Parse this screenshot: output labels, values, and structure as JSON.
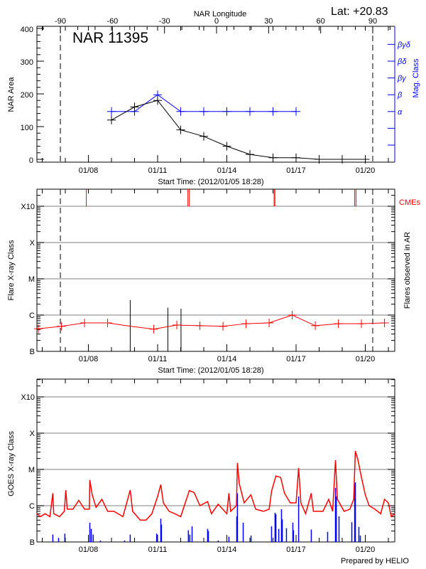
{
  "lat_label": "Lat: +20.83",
  "footer": "Prepared by HELIO",
  "colors": {
    "area": "#000000",
    "mag": "#0000ff",
    "flare_avg": "#ff0000",
    "cme": "#ff0000",
    "goes_long": "#ff0000",
    "goes_short": "#0000ff",
    "grid": "#999999"
  },
  "chart_data": [
    {
      "type": "line",
      "title": "NAR 11395",
      "top_axis_label": "NAR Longitude",
      "top_axis_ticks": [
        -90,
        -60,
        -30,
        0,
        30,
        60,
        90
      ],
      "limb_longitudes": [
        -90,
        90
      ],
      "xlabel": "Start Time: (2012/01/05 18:28)",
      "x_range": [
        "2012-01-05 18:28",
        "2012-01-21 06:28"
      ],
      "x_tick_labels": [
        "01/08",
        "01/11",
        "01/14",
        "01/17",
        "01/20"
      ],
      "x_tick_dates": [
        "2012-01-08 00:00",
        "2012-01-11 00:00",
        "2012-01-14 00:00",
        "2012-01-17 00:00",
        "2012-01-20 00:00"
      ],
      "ylabel": "NAR Area",
      "ylim": [
        0,
        400
      ],
      "y_ticks": [
        0,
        100,
        200,
        300,
        400
      ],
      "y2label": "Mag. Class",
      "y2_levels": [
        "",
        "",
        "α",
        "β",
        "βγ",
        "βδ",
        "βγδ"
      ],
      "area_series": {
        "x": [
          "2012-01-09 00:00",
          "2012-01-10 00:00",
          "2012-01-11 00:00",
          "2012-01-12 00:00",
          "2012-01-13 00:00",
          "2012-01-14 00:00",
          "2012-01-15 00:00",
          "2012-01-16 00:00",
          "2012-01-17 00:00",
          "2012-01-18 00:00",
          "2012-01-19 00:00",
          "2012-01-20 00:00"
        ],
        "values": [
          120,
          160,
          180,
          90,
          70,
          40,
          15,
          5,
          5,
          0,
          0,
          0
        ]
      },
      "mag_series": {
        "x": [
          "2012-01-09 00:00",
          "2012-01-10 00:00",
          "2012-01-11 00:00",
          "2012-01-12 00:00",
          "2012-01-13 00:00",
          "2012-01-14 00:00",
          "2012-01-15 00:00",
          "2012-01-16 00:00",
          "2012-01-17 00:00"
        ],
        "values": [
          "α",
          "α",
          "β",
          "α",
          "α",
          "α",
          "α",
          "α",
          "α"
        ]
      }
    },
    {
      "type": "line",
      "xlabel": "Start Time: (2012/01/05 18:28)",
      "x_tick_labels": [
        "01/08",
        "01/11",
        "01/14",
        "01/17",
        "01/20"
      ],
      "ylabel": "Flare X-ray Class",
      "y2label": "Flares observed in AR",
      "y_scale": "log",
      "y_tick_labels": [
        "B",
        "C",
        "M",
        "X",
        "X10"
      ],
      "grid": true,
      "cme_label": "CMEs",
      "cme_times": [
        "2012-01-07 21:50",
        "2012-01-12 07:30",
        "2012-01-12 09:00",
        "2012-01-16 01:10",
        "2012-01-16 02:00",
        "2012-01-19 13:00",
        "2012-01-19 14:20"
      ],
      "flares": [
        {
          "time": "2012-01-09 19:30",
          "class": "C2.6"
        },
        {
          "time": "2012-01-11 10:40",
          "class": "C1.6"
        },
        {
          "time": "2012-01-12 00:20",
          "class": "C1.5"
        }
      ],
      "background_series": {
        "x": [
          "2012-01-05 20:00",
          "2012-01-06 20:00",
          "2012-01-07 20:00",
          "2012-01-08 20:00",
          "2012-01-09 20:00",
          "2012-01-10 20:00",
          "2012-01-11 20:00",
          "2012-01-12 20:00",
          "2012-01-13 20:00",
          "2012-01-14 20:00",
          "2012-01-15 20:00",
          "2012-01-16 20:00",
          "2012-01-17 20:00",
          "2012-01-18 20:00",
          "2012-01-19 20:00",
          "2012-01-20 20:00"
        ],
        "values": [
          "B4.2",
          "B4.9",
          "B6.1",
          "B6.1",
          "B4.9",
          "B4.1",
          "B5.3",
          "B5.1",
          "B4.9",
          "B5.8",
          "B6.1",
          "C1.0",
          "B5.1",
          "B5.8",
          "B5.8",
          "B6.1"
        ],
        "markers": [
          true,
          true,
          true,
          true,
          false,
          true,
          true,
          true,
          true,
          true,
          true,
          true,
          true,
          true,
          true,
          true
        ]
      }
    },
    {
      "type": "line",
      "x_tick_labels": [
        "01/08",
        "01/11",
        "01/14",
        "01/17",
        "01/20"
      ],
      "ylabel": "GOES X-ray Class",
      "y_scale": "log",
      "y_tick_labels": [
        "B",
        "C",
        "M",
        "X",
        "X10"
      ],
      "grid": true,
      "long_channel": [
        [
          "2012-01-05 18:28",
          6e-07
        ],
        [
          "2012-01-05 22:00",
          5e-07
        ],
        [
          "2012-01-06 03:00",
          6e-07
        ],
        [
          "2012-01-06 08:00",
          5e-07
        ],
        [
          "2012-01-06 11:00",
          2.2e-06
        ],
        [
          "2012-01-06 12:00",
          6e-07
        ],
        [
          "2012-01-06 18:00",
          5e-07
        ],
        [
          "2012-01-06 23:00",
          7e-07
        ],
        [
          "2012-01-07 00:30",
          2.7e-06
        ],
        [
          "2012-01-07 02:00",
          8e-07
        ],
        [
          "2012-01-07 08:00",
          8e-07
        ],
        [
          "2012-01-07 14:00",
          1.4e-06
        ],
        [
          "2012-01-07 20:00",
          8e-07
        ],
        [
          "2012-01-08 01:00",
          8e-07
        ],
        [
          "2012-01-08 01:30",
          5.1e-06
        ],
        [
          "2012-01-08 04:00",
          2e-06
        ],
        [
          "2012-01-08 08:00",
          9e-07
        ],
        [
          "2012-01-08 14:00",
          1.5e-06
        ],
        [
          "2012-01-08 20:00",
          7e-07
        ],
        [
          "2012-01-09 02:30",
          7e-07
        ],
        [
          "2012-01-09 12:00",
          5e-07
        ],
        [
          "2012-01-09 19:30",
          2.7e-06
        ],
        [
          "2012-01-09 22:00",
          7e-07
        ],
        [
          "2012-01-10 06:00",
          4e-07
        ],
        [
          "2012-01-10 12:00",
          4e-07
        ],
        [
          "2012-01-10 18:00",
          6e-07
        ],
        [
          "2012-01-11 00:00",
          1.8e-06
        ],
        [
          "2012-01-11 03:20",
          3.8e-06
        ],
        [
          "2012-01-11 06:00",
          1.2e-06
        ],
        [
          "2012-01-11 12:00",
          7e-07
        ],
        [
          "2012-01-11 18:00",
          6e-07
        ],
        [
          "2012-01-12 00:00",
          5e-07
        ],
        [
          "2012-01-12 06:00",
          1.5e-06
        ],
        [
          "2012-01-12 09:00",
          2.6e-06
        ],
        [
          "2012-01-12 14:00",
          2.3e-06
        ],
        [
          "2012-01-12 20:00",
          1e-06
        ],
        [
          "2012-01-13 04:00",
          1.3e-06
        ],
        [
          "2012-01-13 08:00",
          6e-07
        ],
        [
          "2012-01-13 15:00",
          1.1e-06
        ],
        [
          "2012-01-14 00:00",
          6e-07
        ],
        [
          "2012-01-14 02:10",
          2.2e-06
        ],
        [
          "2012-01-14 04:00",
          7e-07
        ],
        [
          "2012-01-14 10:00",
          1e-06
        ],
        [
          "2012-01-14 11:00",
          1.5e-05
        ],
        [
          "2012-01-14 13:00",
          4e-06
        ],
        [
          "2012-01-14 18:00",
          1.2e-06
        ],
        [
          "2012-01-15 01:00",
          2e-06
        ],
        [
          "2012-01-15 06:00",
          8e-07
        ],
        [
          "2012-01-15 14:00",
          7e-07
        ],
        [
          "2012-01-15 20:00",
          8e-07
        ],
        [
          "2012-01-15 22:30",
          2.5e-06
        ],
        [
          "2012-01-16 03:00",
          6.6e-06
        ],
        [
          "2012-01-16 08:00",
          6e-06
        ],
        [
          "2012-01-16 12:00",
          2.2e-06
        ],
        [
          "2012-01-16 18:00",
          1.2e-06
        ],
        [
          "2012-01-17 00:00",
          1.2e-06
        ],
        [
          "2012-01-17 02:40",
          1.1e-05
        ],
        [
          "2012-01-17 05:00",
          1.2e-06
        ],
        [
          "2012-01-17 10:00",
          6e-07
        ],
        [
          "2012-01-17 15:50",
          2.2e-06
        ],
        [
          "2012-01-17 18:00",
          7e-07
        ],
        [
          "2012-01-18 04:00",
          7e-07
        ],
        [
          "2012-01-18 10:00",
          1.5e-06
        ],
        [
          "2012-01-18 14:00",
          7e-07
        ],
        [
          "2012-01-18 17:00",
          1.8e-05
        ],
        [
          "2012-01-18 19:00",
          1.5e-06
        ],
        [
          "2012-01-19 02:00",
          7e-07
        ],
        [
          "2012-01-19 08:00",
          8e-07
        ],
        [
          "2012-01-19 12:00",
          1.5e-06
        ],
        [
          "2012-01-19 13:40",
          3.2e-05
        ],
        [
          "2012-01-19 16:00",
          2e-05
        ],
        [
          "2012-01-19 20:00",
          6e-06
        ],
        [
          "2012-01-20 00:00",
          2e-06
        ],
        [
          "2012-01-20 04:00",
          1e-06
        ],
        [
          "2012-01-20 10:00",
          8e-07
        ],
        [
          "2012-01-20 16:00",
          6e-07
        ],
        [
          "2012-01-20 20:00",
          1.5e-06
        ],
        [
          "2012-01-21 00:00",
          1.2e-06
        ],
        [
          "2012-01-21 03:00",
          5e-07
        ],
        [
          "2012-01-21 06:28",
          6e-07
        ]
      ],
      "short_channel_peaks": [
        [
          "2012-01-06 11:00",
          1.6e-07
        ],
        [
          "2012-01-06 17:00",
          1.3e-07
        ],
        [
          "2012-01-06 23:30",
          1.7e-07
        ],
        [
          "2012-01-08 01:30",
          3.4e-07
        ],
        [
          "2012-01-08 03:00",
          2.3e-07
        ],
        [
          "2012-01-08 05:00",
          1.6e-07
        ],
        [
          "2012-01-08 12:30",
          1.1e-07
        ],
        [
          "2012-01-09 13:40",
          1.1e-07
        ],
        [
          "2012-01-09 19:30",
          1.6e-07
        ],
        [
          "2012-01-10 23:00",
          1.7e-07
        ],
        [
          "2012-01-11 03:20",
          4.4e-07
        ],
        [
          "2012-01-11 04:00",
          3e-07
        ],
        [
          "2012-01-12 08:00",
          2.1e-07
        ],
        [
          "2012-01-12 09:30",
          1.6e-07
        ],
        [
          "2012-01-12 11:50",
          2.7e-07
        ],
        [
          "2012-01-13 04:00",
          2.3e-07
        ],
        [
          "2012-01-13 04:50",
          2e-07
        ],
        [
          "2012-01-13 15:00",
          1.1e-07
        ],
        [
          "2012-01-14 02:10",
          1.4e-07
        ],
        [
          "2012-01-14 10:20",
          5.1e-07
        ],
        [
          "2012-01-14 11:00",
          2.2e-06
        ],
        [
          "2012-01-14 17:00",
          3.4e-07
        ],
        [
          "2012-01-15 01:10",
          1.5e-07
        ],
        [
          "2012-01-15 22:30",
          2.7e-07
        ],
        [
          "2012-01-16 02:10",
          6.4e-07
        ],
        [
          "2012-01-16 03:00",
          5.8e-07
        ],
        [
          "2012-01-16 06:00",
          2.3e-07
        ],
        [
          "2012-01-16 08:50",
          8e-07
        ],
        [
          "2012-01-16 09:40",
          4.2e-07
        ],
        [
          "2012-01-16 14:00",
          2.4e-07
        ],
        [
          "2012-01-16 20:40",
          3.4e-07
        ],
        [
          "2012-01-16 21:20",
          2.1e-07
        ],
        [
          "2012-01-17 02:40",
          1.8e-06
        ],
        [
          "2012-01-17 15:50",
          2.2e-07
        ],
        [
          "2012-01-18 08:50",
          1.9e-07
        ],
        [
          "2012-01-18 17:00",
          3.1e-06
        ],
        [
          "2012-01-18 17:50",
          1.8e-06
        ],
        [
          "2012-01-18 20:40",
          5.1e-07
        ],
        [
          "2012-01-19 10:00",
          3.5e-07
        ],
        [
          "2012-01-19 13:00",
          3.9e-06
        ],
        [
          "2012-01-19 13:40",
          4.4e-06
        ],
        [
          "2012-01-19 17:20",
          2.6e-07
        ],
        [
          "2012-01-19 18:50",
          1.5e-07
        ]
      ]
    }
  ]
}
